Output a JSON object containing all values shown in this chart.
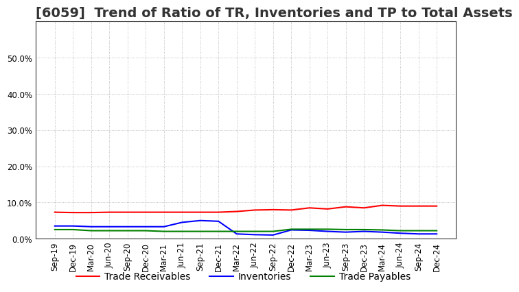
{
  "title": "[6059]  Trend of Ratio of TR, Inventories and TP to Total Assets",
  "x_labels": [
    "Sep-19",
    "Dec-19",
    "Mar-20",
    "Jun-20",
    "Sep-20",
    "Dec-20",
    "Mar-21",
    "Jun-21",
    "Sep-21",
    "Dec-21",
    "Mar-22",
    "Jun-22",
    "Sep-22",
    "Dec-22",
    "Mar-23",
    "Jun-23",
    "Sep-23",
    "Dec-23",
    "Mar-24",
    "Jun-24",
    "Sep-24",
    "Dec-24"
  ],
  "trade_receivables": [
    0.073,
    0.072,
    0.072,
    0.073,
    0.073,
    0.073,
    0.073,
    0.073,
    0.073,
    0.073,
    0.075,
    0.079,
    0.08,
    0.079,
    0.085,
    0.082,
    0.088,
    0.085,
    0.092,
    0.09,
    0.09,
    0.09
  ],
  "inventories": [
    0.035,
    0.035,
    0.033,
    0.033,
    0.033,
    0.033,
    0.033,
    0.045,
    0.05,
    0.048,
    0.013,
    0.011,
    0.01,
    0.024,
    0.023,
    0.02,
    0.018,
    0.02,
    0.018,
    0.015,
    0.013,
    0.013
  ],
  "trade_payables": [
    0.025,
    0.025,
    0.022,
    0.022,
    0.022,
    0.022,
    0.02,
    0.02,
    0.02,
    0.02,
    0.02,
    0.02,
    0.02,
    0.026,
    0.026,
    0.026,
    0.025,
    0.025,
    0.024,
    0.022,
    0.022,
    0.022
  ],
  "ylim": [
    0.0,
    0.6
  ],
  "yticks": [
    0.0,
    0.1,
    0.2,
    0.3,
    0.4,
    0.5
  ],
  "line_colors": {
    "trade_receivables": "#ff0000",
    "inventories": "#0000ff",
    "trade_payables": "#008000"
  },
  "legend_labels": [
    "Trade Receivables",
    "Inventories",
    "Trade Payables"
  ],
  "background_color": "#ffffff",
  "plot_bg_color": "#ffffff",
  "grid_color": "#999999",
  "title_fontsize": 14,
  "axis_fontsize": 8.5,
  "legend_fontsize": 10
}
